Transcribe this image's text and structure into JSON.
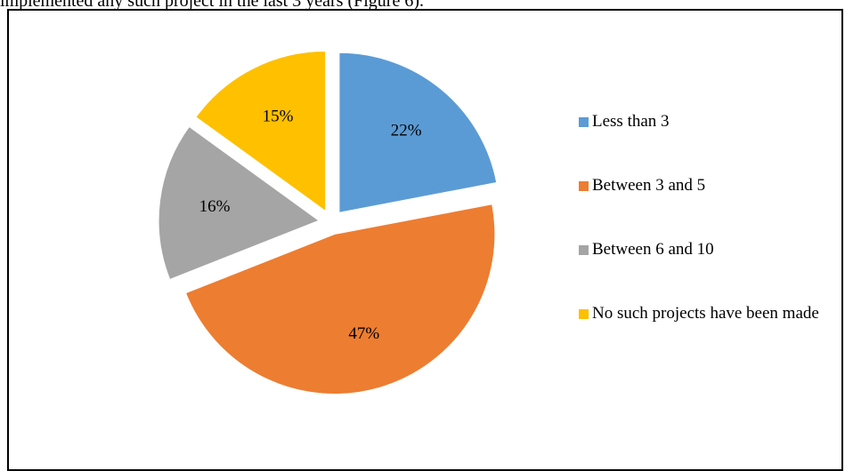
{
  "page": {
    "caption_text": "implemented any such project in the last 3 years (Figure 6)."
  },
  "chart_data": {
    "type": "pie",
    "title": "",
    "categories": [
      "Less than 3",
      "Between 3 and 5",
      "Between 6 and 10",
      "No such projects have been made"
    ],
    "values": [
      22,
      47,
      16,
      15
    ],
    "labels": [
      "22%",
      "47%",
      "16%",
      "15%"
    ],
    "colors": [
      "#5b9bd5",
      "#ed7d31",
      "#a5a5a5",
      "#ffc000"
    ],
    "exploded": true,
    "legend_position": "right"
  }
}
